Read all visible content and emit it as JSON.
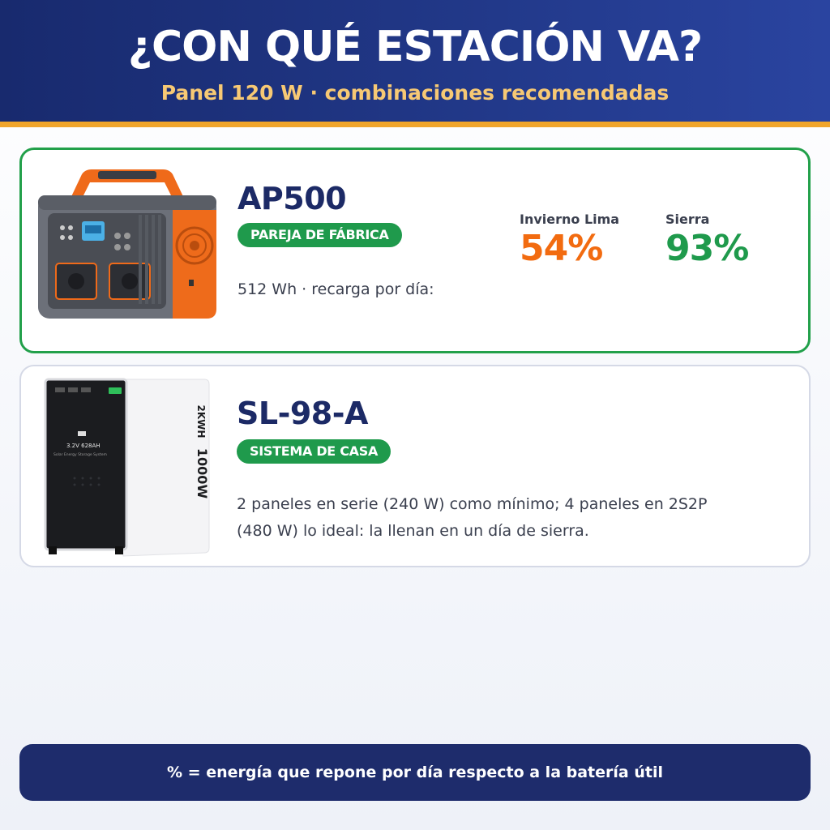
{
  "header": {
    "title": "¿CON QUÉ ESTACIÓN VA?",
    "subtitle": "Panel 120 W · combinaciones recomendadas"
  },
  "cards": [
    {
      "name": "AP500",
      "badge": "PAREJA DE FÁBRICA",
      "description": "512 Wh · recarga por día:",
      "stats": [
        {
          "label": "Invierno Lima",
          "value": "54%",
          "color": "#f26b10"
        },
        {
          "label": "Sierra",
          "value": "93%",
          "color": "#1f9a4c"
        }
      ]
    },
    {
      "name": "SL-98-A",
      "badge": "SISTEMA DE CASA",
      "description_lines": [
        "2 paneles en serie (240 W) como mínimo; 4 paneles en 2S2P",
        "(480 W) lo ideal: la llenan en un día de sierra."
      ],
      "image_text": {
        "battery_label": "3.2V 628AH",
        "battery_sub": "Solar Energy Storage System",
        "side_text": "1000W",
        "side_text2": "2KWH"
      }
    }
  ],
  "footer": {
    "note": "% = energía que repone por día respecto a la batería útil"
  },
  "colors": {
    "header_bg": "#22398a",
    "accent_bar": "#f0a52b",
    "green": "#1f9a4c",
    "orange": "#f26b10",
    "navy": "#1c2a66"
  }
}
